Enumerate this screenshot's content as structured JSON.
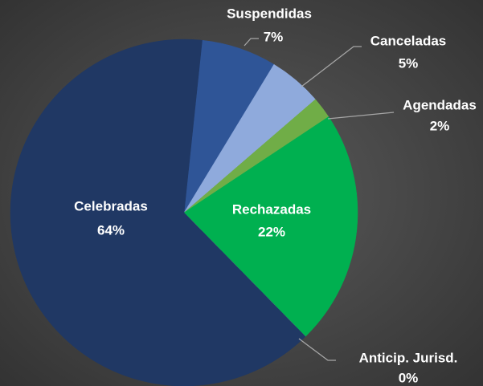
{
  "chart_data": {
    "type": "pie",
    "categories": [
      "Suspendidas",
      "Canceladas",
      "Agendadas",
      "Rechazadas",
      "Anticip. Jurisd.",
      "Celebradas"
    ],
    "values": [
      7,
      5,
      2,
      22,
      0,
      64
    ],
    "value_labels": [
      "7%",
      "5%",
      "2%",
      "22%",
      "0%",
      "64%"
    ],
    "colors": [
      "#2f5597",
      "#8faadc",
      "#70ad47",
      "#00b050",
      "#a5a5a5",
      "#203864"
    ]
  }
}
